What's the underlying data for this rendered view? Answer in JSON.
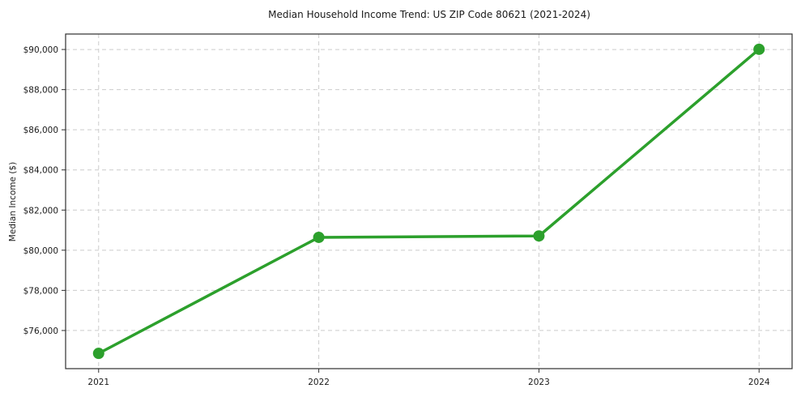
{
  "chart_data": {
    "type": "line",
    "title": "Median Household Income Trend: US ZIP Code 80621 (2021-2024)",
    "xlabel": "",
    "ylabel": "Median Income ($)",
    "x": [
      2021,
      2022,
      2023,
      2024
    ],
    "y": [
      74860,
      80640,
      80710,
      90010
    ],
    "xticks": [
      2021,
      2022,
      2023,
      2024
    ],
    "xtick_labels": [
      "2021",
      "2022",
      "2023",
      "2024"
    ],
    "ytick_values": [
      76000,
      78000,
      80000,
      82000,
      84000,
      86000,
      88000,
      90000
    ],
    "ytick_labels": [
      "$76,000",
      "$78,000",
      "$80,000",
      "$82,000",
      "$84,000",
      "$86,000",
      "$88,000",
      "$90,000"
    ],
    "xlim": [
      2020.85,
      2024.15
    ],
    "ylim": [
      74100,
      90770
    ],
    "grid": true,
    "grid_style": "dashed",
    "grid_color": "#cccccc",
    "line_color": "#2ca02c",
    "marker": "circle",
    "legend": false,
    "background_color": "#ffffff",
    "text_color": "#1a1a1a"
  }
}
